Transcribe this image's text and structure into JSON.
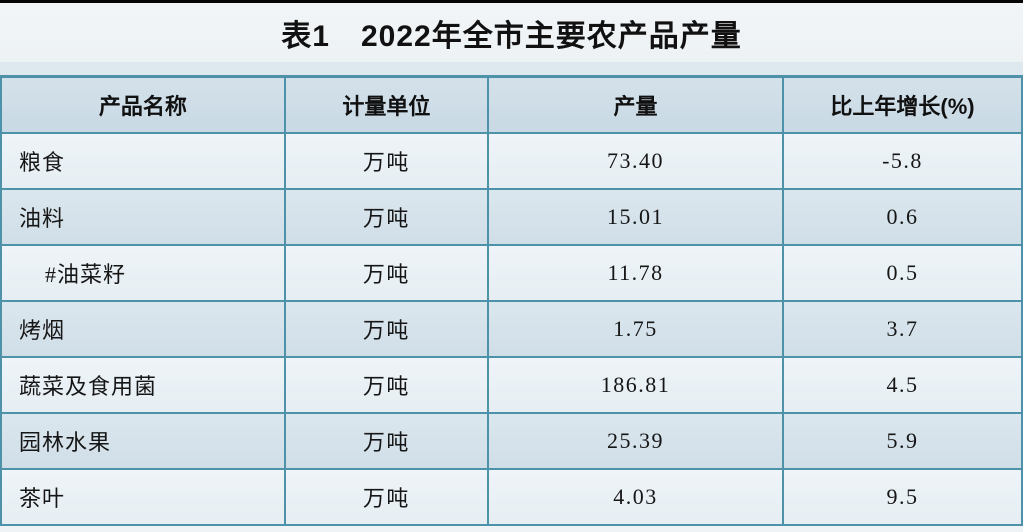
{
  "page": {
    "title": "表1　2022年全市主要农产品产量"
  },
  "colors": {
    "border": "#4e92a9",
    "header_bg_top": "#d4e1ea",
    "header_bg_bottom": "#c8d9e4",
    "row_light_top": "#eef4f8",
    "row_light_bottom": "#e6eef3",
    "row_dark_top": "#dbe7ee",
    "row_dark_bottom": "#d0dee8",
    "page_bg": "#eff3f6",
    "band_bg": "#dde9ef"
  },
  "table": {
    "caption": "表1　2022年全市主要农产品产量",
    "columns": [
      "产品名称",
      "计量单位",
      "产量",
      "比上年增长(%)"
    ],
    "rows": [
      {
        "product": "粮食",
        "unit": "万吨",
        "output": "73.40",
        "growth": "-5.8",
        "indent": false
      },
      {
        "product": "油料",
        "unit": "万吨",
        "output": "15.01",
        "growth": "0.6",
        "indent": false
      },
      {
        "product": "#油菜籽",
        "unit": "万吨",
        "output": "11.78",
        "growth": "0.5",
        "indent": true
      },
      {
        "product": "烤烟",
        "unit": "万吨",
        "output": "1.75",
        "growth": "3.7",
        "indent": false
      },
      {
        "product": "蔬菜及食用菌",
        "unit": "万吨",
        "output": "186.81",
        "growth": "4.5",
        "indent": false
      },
      {
        "product": "园林水果",
        "unit": "万吨",
        "output": "25.39",
        "growth": "5.9",
        "indent": false
      },
      {
        "product": "茶叶",
        "unit": "万吨",
        "output": "4.03",
        "growth": "9.5",
        "indent": false
      }
    ]
  },
  "chart_data": {
    "type": "table",
    "title": "表1　2022年全市主要农产品产量",
    "categories": [
      "粮食",
      "油料",
      "#油菜籽",
      "烤烟",
      "蔬菜及食用菌",
      "园林水果",
      "茶叶"
    ],
    "series": [
      {
        "name": "产量(万吨)",
        "values": [
          73.4,
          15.01,
          11.78,
          1.75,
          186.81,
          25.39,
          4.03
        ]
      },
      {
        "name": "比上年增长(%)",
        "values": [
          -5.8,
          0.6,
          0.5,
          3.7,
          4.5,
          5.9,
          9.5
        ]
      }
    ]
  }
}
